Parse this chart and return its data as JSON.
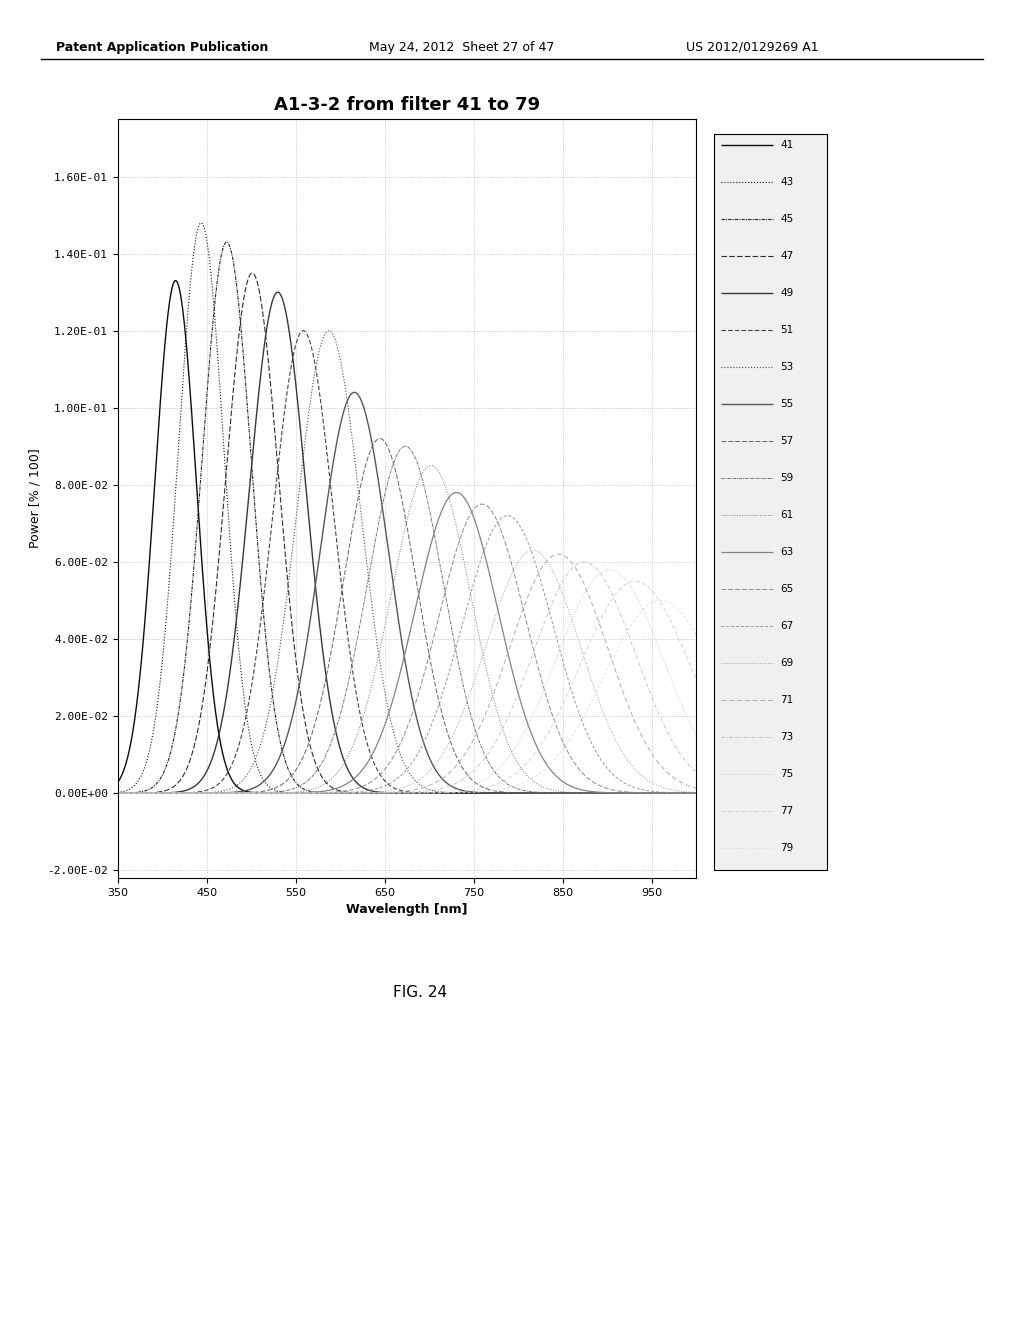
{
  "title": "A1-3-2 from filter 41 to 79",
  "xlabel": "Wavelength [nm]",
  "ylabel": "Power [% / 100]",
  "xlim": [
    350,
    1000
  ],
  "ylim": [
    -0.022,
    0.175
  ],
  "yticks": [
    -0.02,
    0.0,
    0.02,
    0.04,
    0.06,
    0.08,
    0.1,
    0.12,
    0.14,
    0.16
  ],
  "ytick_labels": [
    "-2.00E-02",
    "0.00E+00",
    "2.00E-02",
    "4.00E-02",
    "6.00E-02",
    "8.00E-02",
    "1.00E-01",
    "1.20E-01",
    "1.40E-01",
    "1.60E-01"
  ],
  "xticks": [
    350,
    450,
    550,
    650,
    750,
    850,
    950
  ],
  "filter_ids": [
    41,
    43,
    45,
    47,
    49,
    51,
    53,
    55,
    57,
    59,
    61,
    63,
    65,
    67,
    69,
    71,
    73,
    75,
    77,
    79
  ],
  "header_left": "Patent Application Publication",
  "header_mid": "May 24, 2012  Sheet 27 of 47",
  "header_right": "US 2012/0129269 A1",
  "fig_label": "FIG. 24",
  "background_color": "#ffffff",
  "plot_bg_color": "#ffffff",
  "grid_color": "#999999",
  "title_fontsize": 13,
  "axis_label_fontsize": 9,
  "tick_fontsize": 8,
  "legend_fontsize": 7.5,
  "header_fontsize": 9
}
